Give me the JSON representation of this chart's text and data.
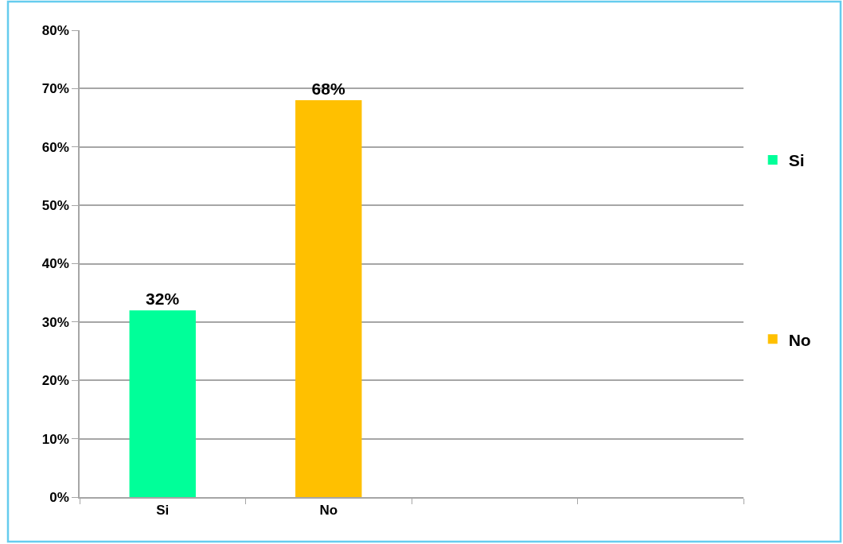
{
  "chart_data": {
    "type": "bar",
    "categories": [
      "Si",
      "No",
      null,
      null
    ],
    "series": [
      {
        "name": "Si",
        "color": "#00ff99",
        "values": [
          32,
          null,
          null,
          null
        ],
        "value_labels": [
          "32%",
          null,
          null,
          null
        ]
      },
      {
        "name": "No",
        "color": "#ffc000",
        "values": [
          null,
          68,
          null,
          null
        ],
        "value_labels": [
          null,
          "68%",
          null,
          null
        ]
      }
    ],
    "ylim": [
      0,
      80
    ],
    "yticks": [
      {
        "value": 0,
        "label": "0%"
      },
      {
        "value": 10,
        "label": "10%"
      },
      {
        "value": 20,
        "label": "20%"
      },
      {
        "value": 30,
        "label": "30%"
      },
      {
        "value": 40,
        "label": "40%"
      },
      {
        "value": 50,
        "label": "50%"
      },
      {
        "value": 60,
        "label": "60%"
      },
      {
        "value": 70,
        "label": "70%"
      },
      {
        "value": 80,
        "label": "80%"
      }
    ],
    "grid": "y",
    "legend": "right"
  }
}
